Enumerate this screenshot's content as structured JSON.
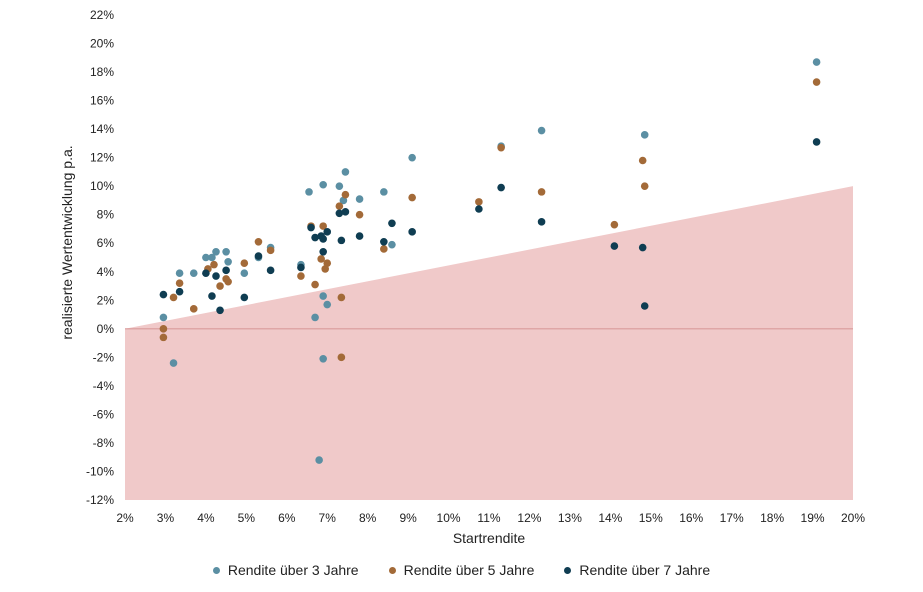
{
  "chart_data": {
    "type": "scatter",
    "xlabel": "Startrendite",
    "ylabel": "realisierte Wertentwicklung p.a.",
    "xlim": [
      2,
      20
    ],
    "ylim": [
      -12,
      22
    ],
    "x_ticks": [
      "2%",
      "3%",
      "4%",
      "5%",
      "6%",
      "7%",
      "8%",
      "9%",
      "10%",
      "11%",
      "12%",
      "13%",
      "14%",
      "15%",
      "16%",
      "17%",
      "18%",
      "19%",
      "20%"
    ],
    "y_ticks": [
      "22%",
      "20%",
      "18%",
      "16%",
      "14%",
      "12%",
      "10%",
      "8%",
      "6%",
      "4%",
      "2%",
      "0%",
      "-2%",
      "-4%",
      "-6%",
      "-8%",
      "-10%",
      "-12%"
    ],
    "shaded_region": {
      "description_points": [
        [
          2,
          0
        ],
        [
          20,
          10
        ]
      ],
      "fill": "#f0c9c9"
    },
    "series": [
      {
        "name": "Rendite über 3 Jahre",
        "color": "#5b8fa3",
        "points": [
          [
            2.95,
            0.8
          ],
          [
            3.2,
            -2.4
          ],
          [
            3.35,
            3.9
          ],
          [
            3.7,
            3.9
          ],
          [
            4.0,
            5.0
          ],
          [
            4.15,
            5.0
          ],
          [
            4.25,
            5.4
          ],
          [
            4.5,
            5.4
          ],
          [
            4.55,
            4.7
          ],
          [
            4.95,
            3.9
          ],
          [
            5.3,
            5.0
          ],
          [
            5.6,
            5.7
          ],
          [
            6.35,
            4.5
          ],
          [
            6.55,
            9.6
          ],
          [
            6.7,
            0.8
          ],
          [
            6.9,
            10.1
          ],
          [
            6.9,
            -2.1
          ],
          [
            6.9,
            2.3
          ],
          [
            7.0,
            1.7
          ],
          [
            7.3,
            10.0
          ],
          [
            7.4,
            9.0
          ],
          [
            7.45,
            11.0
          ],
          [
            7.8,
            9.1
          ],
          [
            8.4,
            9.6
          ],
          [
            8.6,
            5.9
          ],
          [
            9.1,
            12.0
          ],
          [
            11.3,
            12.8
          ],
          [
            12.3,
            13.9
          ],
          [
            14.85,
            13.6
          ],
          [
            19.1,
            18.7
          ],
          [
            6.8,
            -9.2
          ]
        ]
      },
      {
        "name": "Rendite über 5 Jahre",
        "color": "#a36a38",
        "points": [
          [
            2.95,
            0.0
          ],
          [
            2.95,
            -0.6
          ],
          [
            3.2,
            2.2
          ],
          [
            3.35,
            3.2
          ],
          [
            3.7,
            1.4
          ],
          [
            4.05,
            4.2
          ],
          [
            4.2,
            4.5
          ],
          [
            4.35,
            3.0
          ],
          [
            4.5,
            3.5
          ],
          [
            4.55,
            3.3
          ],
          [
            4.95,
            4.6
          ],
          [
            5.3,
            6.1
          ],
          [
            5.6,
            5.5
          ],
          [
            6.35,
            3.7
          ],
          [
            6.6,
            7.2
          ],
          [
            6.7,
            3.1
          ],
          [
            6.85,
            4.9
          ],
          [
            6.9,
            7.2
          ],
          [
            6.95,
            4.2
          ],
          [
            7.0,
            4.6
          ],
          [
            7.3,
            8.6
          ],
          [
            7.35,
            2.2
          ],
          [
            7.35,
            -2.0
          ],
          [
            7.45,
            9.4
          ],
          [
            7.8,
            8.0
          ],
          [
            8.4,
            5.6
          ],
          [
            9.1,
            9.2
          ],
          [
            10.75,
            8.9
          ],
          [
            11.3,
            12.7
          ],
          [
            12.3,
            9.6
          ],
          [
            14.1,
            7.3
          ],
          [
            14.8,
            11.8
          ],
          [
            14.85,
            10.0
          ],
          [
            19.1,
            17.3
          ]
        ]
      },
      {
        "name": "Rendite über 7 Jahre",
        "color": "#0f3d52",
        "points": [
          [
            2.95,
            2.4
          ],
          [
            3.35,
            2.6
          ],
          [
            4.0,
            3.9
          ],
          [
            4.15,
            2.3
          ],
          [
            4.25,
            3.7
          ],
          [
            4.35,
            1.3
          ],
          [
            4.5,
            4.1
          ],
          [
            4.95,
            2.2
          ],
          [
            5.3,
            5.1
          ],
          [
            5.6,
            4.1
          ],
          [
            6.35,
            4.3
          ],
          [
            6.6,
            7.1
          ],
          [
            6.7,
            6.4
          ],
          [
            6.85,
            6.5
          ],
          [
            6.9,
            6.3
          ],
          [
            6.9,
            5.4
          ],
          [
            7.0,
            6.8
          ],
          [
            7.3,
            8.1
          ],
          [
            7.35,
            6.2
          ],
          [
            7.45,
            8.2
          ],
          [
            7.8,
            6.5
          ],
          [
            8.4,
            6.1
          ],
          [
            8.6,
            7.4
          ],
          [
            9.1,
            6.8
          ],
          [
            10.75,
            8.4
          ],
          [
            11.3,
            9.9
          ],
          [
            12.3,
            7.5
          ],
          [
            14.1,
            5.8
          ],
          [
            14.8,
            5.7
          ],
          [
            14.85,
            1.6
          ],
          [
            19.1,
            13.1
          ]
        ]
      }
    ]
  }
}
